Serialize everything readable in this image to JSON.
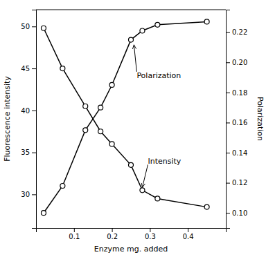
{
  "chart_data": {
    "type": "line",
    "xlabel": "Enzyme mg. added",
    "ylabel": "Fluorescence intensity",
    "y2label": "Polarization",
    "x": [
      0.02,
      0.07,
      0.13,
      0.17,
      0.2,
      0.25,
      0.28,
      0.32,
      0.45
    ],
    "series": [
      {
        "color": "#000000",
        "marker": "circle",
        "values": [
          49.8,
          45.0,
          40.5,
          37.5,
          36.0,
          33.5,
          30.5,
          29.5,
          28.5
        ]
      },
      {
        "axis": "y2",
        "color": "#000000",
        "marker": "circle",
        "values": [
          0.1,
          0.118,
          0.155,
          0.17,
          0.185,
          0.215,
          0.221,
          0.225,
          0.227
        ]
      }
    ],
    "xlim": [
      0,
      0.5
    ],
    "xticks": [
      0.1,
      0.2,
      0.3,
      0.4
    ],
    "ylim": [
      26,
      52
    ],
    "yticks": [
      30,
      35,
      40,
      45,
      50
    ],
    "y2lim": [
      0.09,
      0.235
    ],
    "y2ticks": [
      {
        "value": 0.1,
        "label": "0.10"
      },
      0.12,
      0.14,
      0.16,
      0.18,
      {
        "value": 0.2,
        "label": "0.20"
      },
      0.22
    ],
    "grid": false,
    "annotations": [
      {
        "text": "Polarization",
        "x": 0.258,
        "y": 0.2135,
        "axis": "y2"
      },
      {
        "text": "Intensity",
        "x": 0.28,
        "y": 30.5
      }
    ]
  }
}
